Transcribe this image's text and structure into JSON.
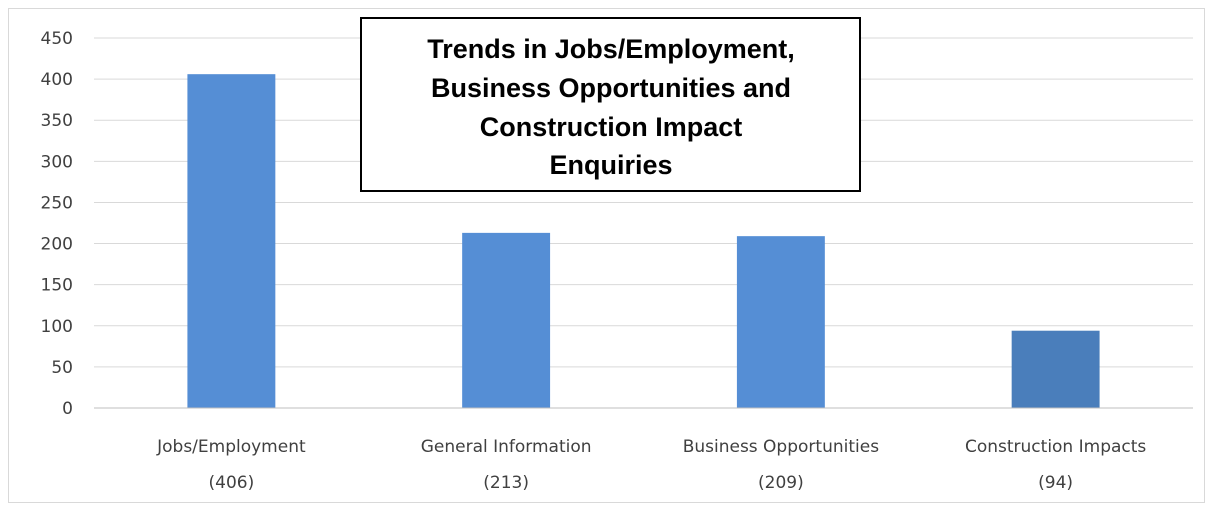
{
  "chart_data": {
    "type": "bar",
    "title_lines": [
      "Trends in Jobs/Employment,",
      "Business Opportunities and",
      "Construction Impact",
      "Enquiries"
    ],
    "categories": [
      [
        "Jobs/Employment",
        "(406)"
      ],
      [
        "General Information",
        "(213)"
      ],
      [
        "Business Opportunities",
        "(209)"
      ],
      [
        "Construction Impacts",
        "(94)"
      ]
    ],
    "values": [
      406,
      213,
      209,
      94
    ],
    "ylim": [
      0,
      450
    ],
    "yticks": [
      "0",
      "50",
      "100",
      "150",
      "200",
      "250",
      "300",
      "350",
      "400",
      "450"
    ],
    "grid": true,
    "colors": {
      "bars": [
        "#558ED5",
        "#558ED5",
        "#558ED5",
        "#4A7EBB"
      ],
      "grid": "#d9d9d9",
      "axis": "#bfbfbf"
    }
  }
}
